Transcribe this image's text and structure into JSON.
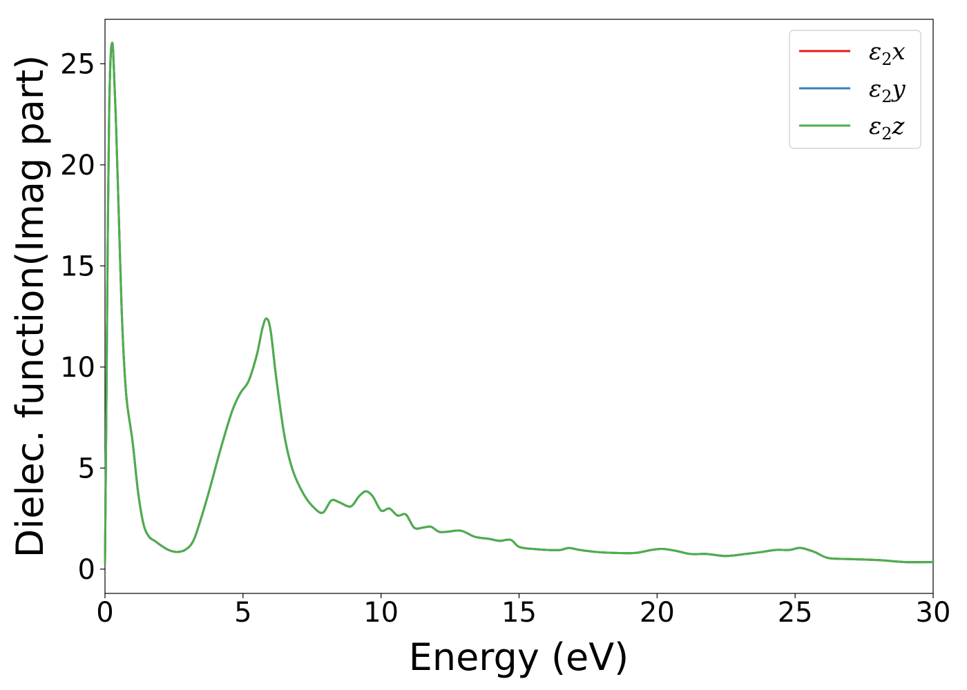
{
  "chart_data": {
    "type": "line",
    "xlabel": "Energy (eV)",
    "ylabel": "Dielec. function(Imag part)",
    "xlim": [
      0,
      30
    ],
    "ylim": [
      -1.2,
      27.2
    ],
    "xticks": [
      "0",
      "5",
      "10",
      "15",
      "20",
      "25",
      "30"
    ],
    "yticks": [
      "0",
      "5",
      "10",
      "15",
      "20",
      "25"
    ],
    "grid": false,
    "legend_position": "top-right",
    "series": [
      {
        "name": "ε₂x",
        "base": "ε",
        "sub": "2",
        "suffix": "x",
        "color": "#e41a1c"
      },
      {
        "name": "ε₂y",
        "base": "ε",
        "sub": "2",
        "suffix": "y",
        "color": "#377eb8"
      },
      {
        "name": "ε₂z",
        "base": "ε",
        "sub": "2",
        "suffix": "z",
        "color": "#4daf4a"
      }
    ],
    "x": [
      0,
      0.05,
      0.1,
      0.15,
      0.2,
      0.25,
      0.3,
      0.4,
      0.5,
      0.6,
      0.7,
      0.8,
      1.0,
      1.2,
      1.4,
      1.6,
      1.8,
      2.0,
      2.3,
      2.6,
      2.9,
      3.2,
      3.5,
      3.8,
      4.2,
      4.6,
      4.9,
      5.2,
      5.5,
      5.7,
      5.85,
      6.0,
      6.2,
      6.5,
      6.8,
      7.2,
      7.6,
      7.9,
      8.2,
      8.5,
      8.9,
      9.2,
      9.45,
      9.7,
      10.0,
      10.3,
      10.6,
      10.9,
      11.2,
      11.5,
      11.8,
      12.1,
      12.4,
      12.9,
      13.4,
      13.9,
      14.3,
      14.7,
      15.0,
      15.5,
      16.0,
      16.5,
      16.8,
      17.2,
      17.8,
      18.5,
      19.2,
      19.8,
      20.2,
      20.7,
      21.2,
      21.8,
      22.5,
      23.2,
      23.8,
      24.3,
      24.8,
      25.2,
      25.7,
      26.2,
      27.0,
      28.0,
      29.0,
      30.0
    ],
    "values": [
      0.3,
      8.0,
      16.5,
      22.5,
      25.2,
      26.0,
      25.5,
      22.0,
      17.5,
      13.0,
      10.0,
      8.2,
      6.3,
      3.8,
      2.2,
      1.6,
      1.4,
      1.2,
      0.95,
      0.85,
      0.95,
      1.4,
      2.6,
      4.0,
      6.0,
      7.8,
      8.7,
      9.3,
      10.6,
      11.9,
      12.4,
      11.8,
      9.5,
      6.6,
      4.9,
      3.7,
      3.0,
      2.8,
      3.4,
      3.3,
      3.1,
      3.6,
      3.85,
      3.6,
      2.9,
      3.0,
      2.65,
      2.7,
      2.05,
      2.05,
      2.1,
      1.85,
      1.85,
      1.9,
      1.6,
      1.5,
      1.4,
      1.45,
      1.1,
      1.0,
      0.95,
      0.95,
      1.05,
      0.95,
      0.85,
      0.8,
      0.8,
      0.95,
      1.0,
      0.9,
      0.75,
      0.75,
      0.65,
      0.75,
      0.85,
      0.95,
      0.95,
      1.05,
      0.85,
      0.55,
      0.5,
      0.45,
      0.35,
      0.35
    ]
  }
}
